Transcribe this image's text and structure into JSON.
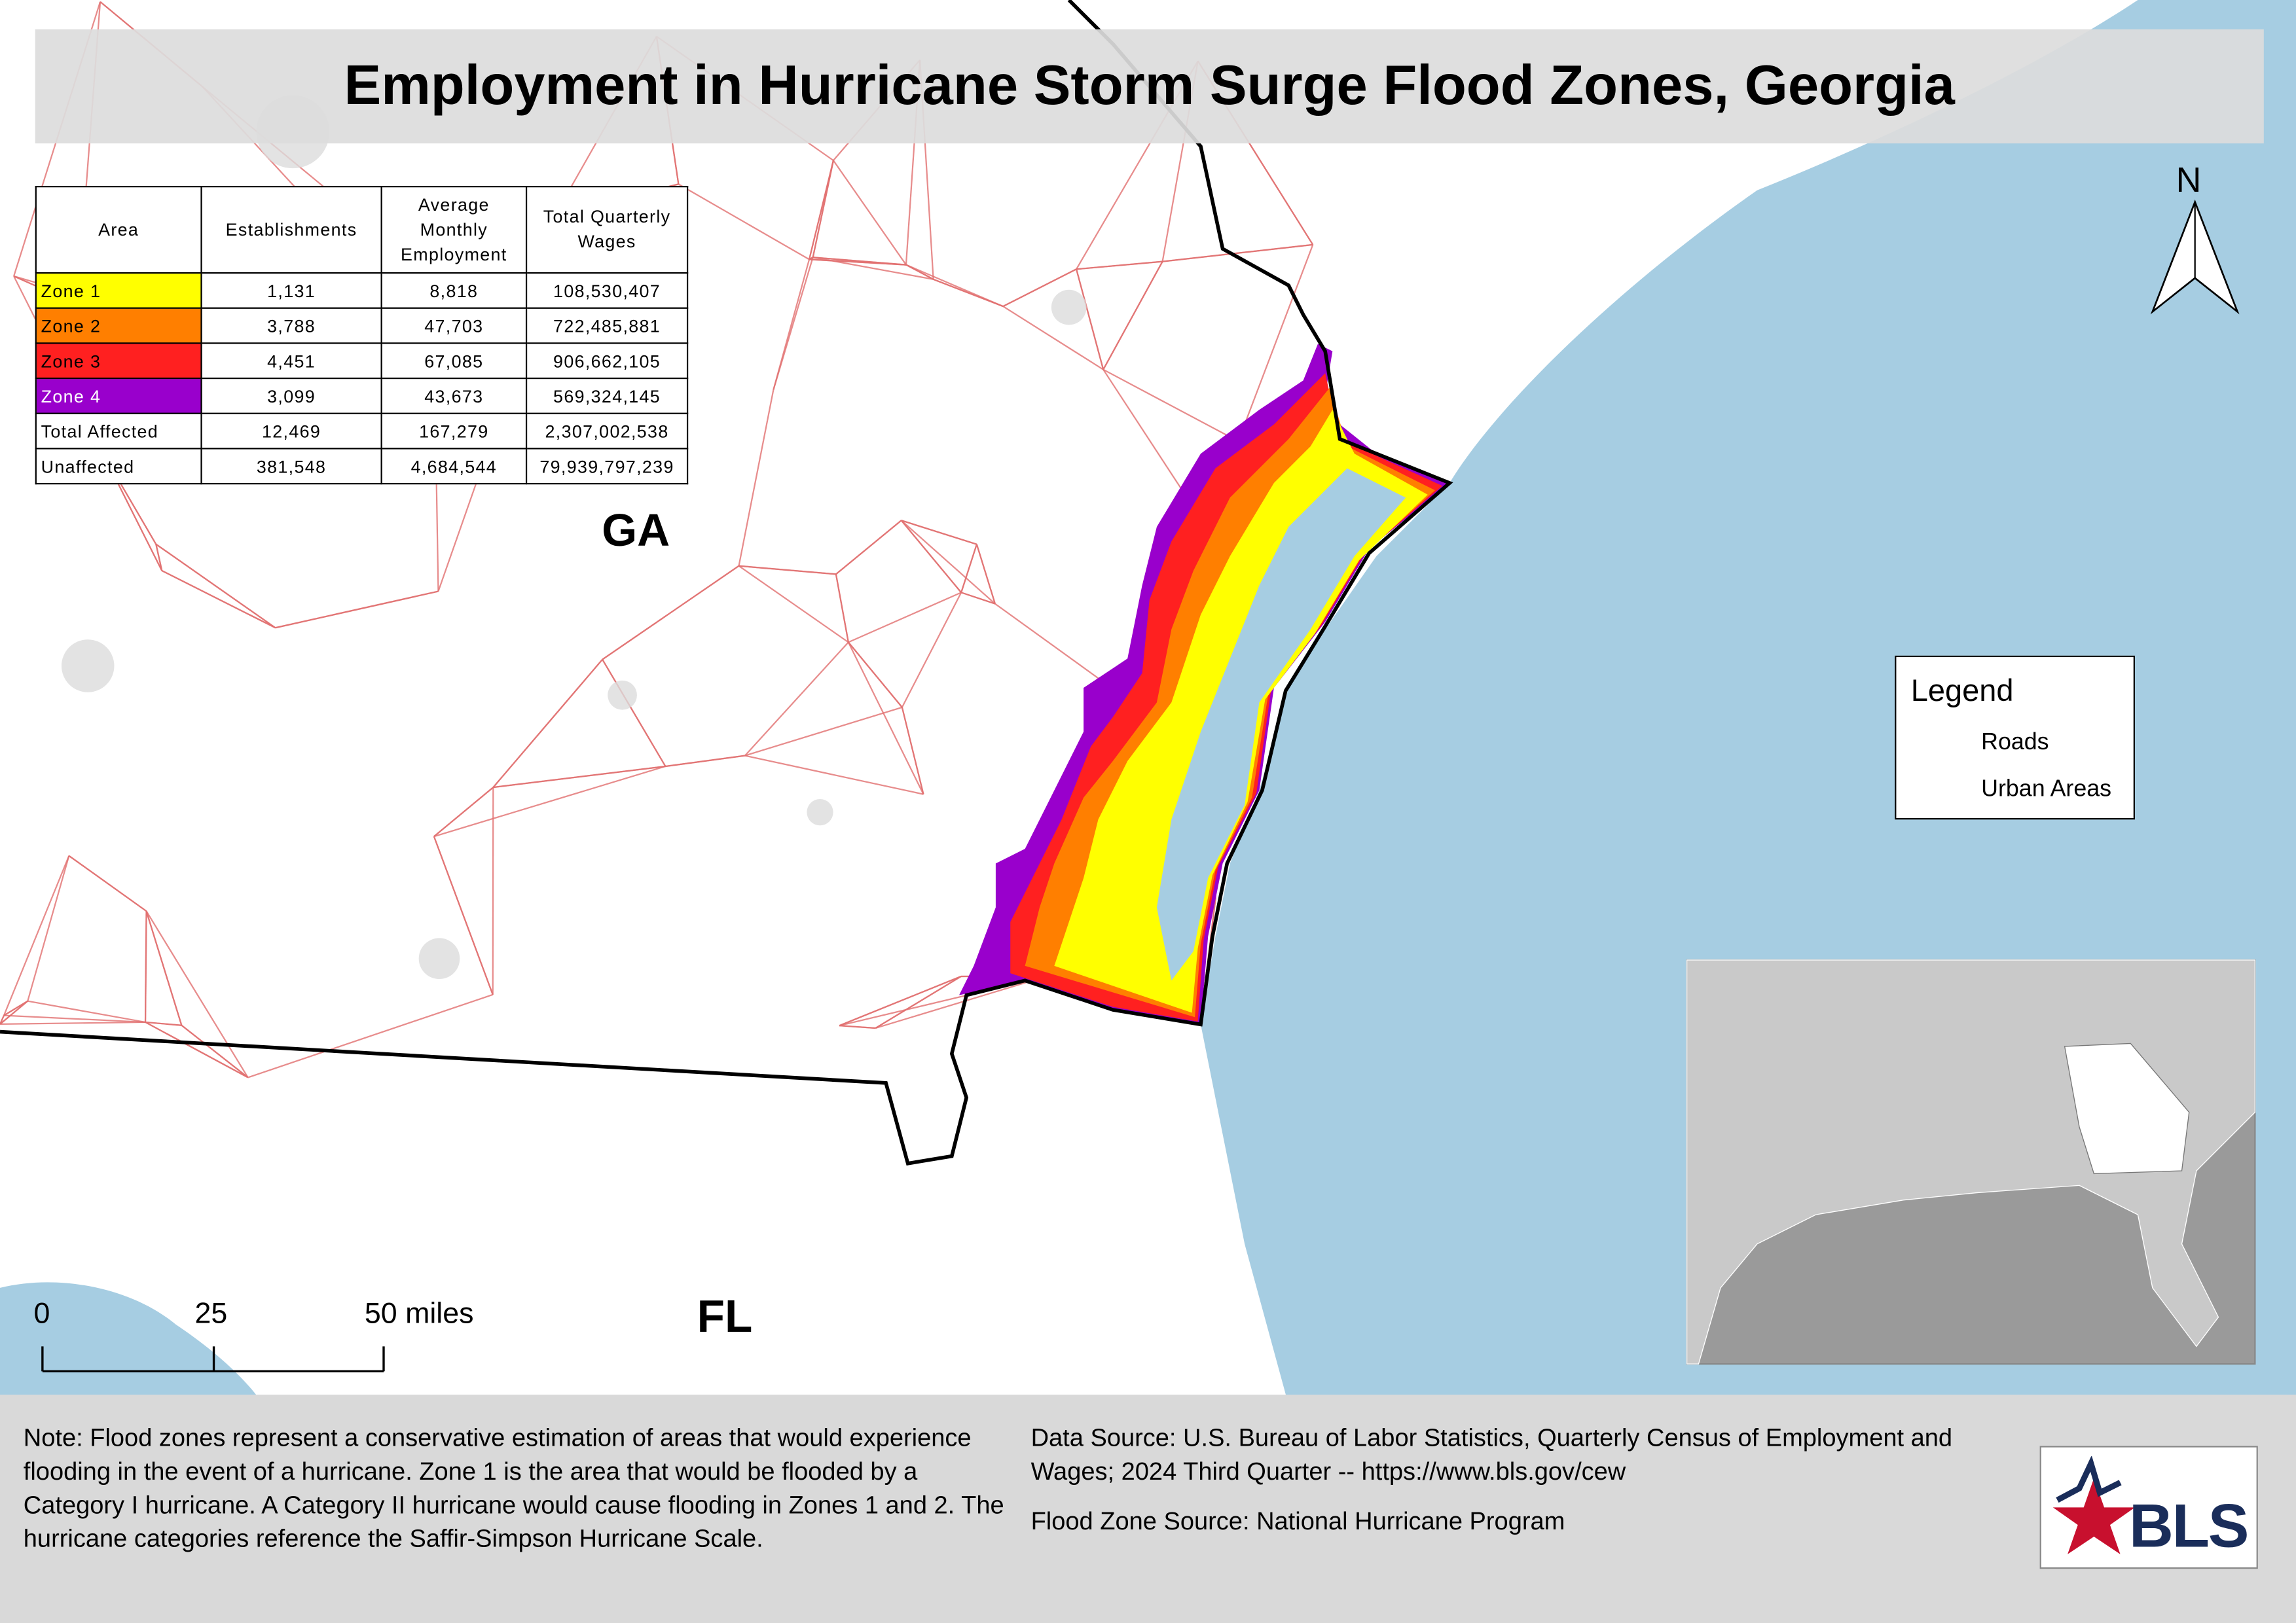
{
  "title": "Employment in Hurricane Storm Surge Flood Zones, Georgia",
  "table": {
    "header": [
      "Area",
      "Establishments",
      "Average Monthly Employment",
      "Total Quarterly Wages"
    ],
    "rows": [
      [
        "Zone 1",
        "1,131",
        "8,818",
        "108,530,407"
      ],
      [
        "Zone 2",
        "3,788",
        "47,703",
        "722,485,881"
      ],
      [
        "Zone 3",
        "4,451",
        "67,085",
        "906,662,105"
      ],
      [
        "Zone 4",
        "3,099",
        "43,673",
        "569,324,145"
      ],
      [
        "Total Affected",
        "12,469",
        "167,279",
        "2,307,002,538"
      ],
      [
        "Unaffected",
        "381,548",
        "4,684,544",
        "79,939,797,239"
      ]
    ]
  },
  "map_labels": [
    "GA",
    "FL"
  ],
  "north_arrow": "N",
  "legend": {
    "title": "Legend",
    "items": [
      "Roads",
      "Urban Areas"
    ]
  },
  "scale_bar": [
    "0",
    "25",
    "50 miles"
  ],
  "note": "Note: Flood zones represent a conservative estimation of areas that would experience flooding in the event of a hurricane. Zone 1 is the area that would be flooded by a Category I hurricane. A Category II hurricane would cause flooding in Zones 1 and 2. The hurricane categories reference the Saffir-Simpson Hurricane Scale.",
  "data_source": "Data Source: U.S. Bureau of Labor Statistics, Quarterly Census of Employment and Wages; 2024 Third Quarter -- https://www.bls.gov/cew",
  "flood_zone_source": "Flood Zone Source: National Hurricane Program",
  "logo": "BLS"
}
